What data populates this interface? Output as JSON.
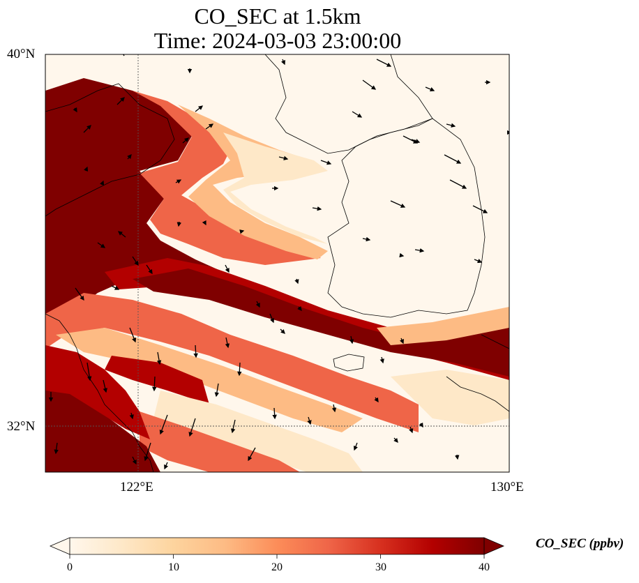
{
  "title": {
    "line1": "CO_SEC at 1.5km",
    "line2": "Time: 2024-03-03 23:00:00"
  },
  "map": {
    "projection": "PlateCarree",
    "lon_range": [
      120,
      130
    ],
    "lat_range": [
      31,
      40
    ],
    "lat_ticks": [
      {
        "value": 40,
        "label": "40°N"
      },
      {
        "value": 32,
        "label": "32°N"
      }
    ],
    "lon_ticks": [
      {
        "value": 122,
        "label": "122°E"
      },
      {
        "value": 130,
        "label": "130°E"
      }
    ],
    "gridlines": "dotted at 122°E and 32°N",
    "coastlines": true,
    "wind_vectors": true
  },
  "colorbar": {
    "label": "CO_SEC (ppbv)",
    "min": 0,
    "max": 40,
    "extend": "both",
    "colormap": "OrRd",
    "ticks": [
      {
        "value": 0,
        "label": "0"
      },
      {
        "value": 10,
        "label": "10"
      },
      {
        "value": 20,
        "label": "20"
      },
      {
        "value": 30,
        "label": "30"
      },
      {
        "value": 40,
        "label": "40"
      }
    ],
    "stops": [
      "#fff7ec",
      "#fee8c8",
      "#fdd49e",
      "#fdbb84",
      "#fc8d59",
      "#ef6548",
      "#d7301f",
      "#b30000",
      "#7f0000"
    ]
  },
  "field_pattern": {
    "description": "diagonal plume bands",
    "colors": {
      "max": "#7f0000",
      "high": "#b30000",
      "mid": "#ef6548",
      "low": "#fdbb84",
      "faint": "#fee8c8",
      "bg": "#fff7ec"
    }
  }
}
